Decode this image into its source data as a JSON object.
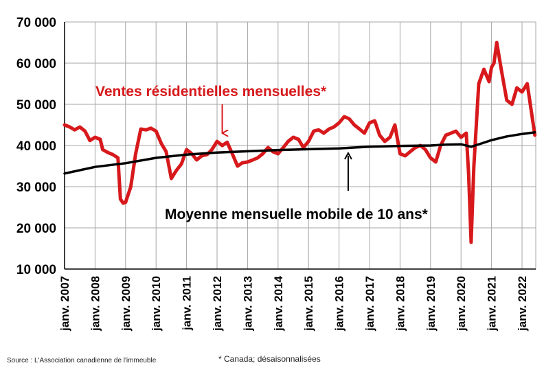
{
  "chart_data": {
    "type": "line",
    "x_tick_labels": [
      "janv. 2007",
      "janv. 2008",
      "janv. 2009",
      "janv. 2010",
      "janv. 2011",
      "janv. 2012",
      "janv. 2013",
      "janv. 2014",
      "janv. 2015",
      "janv. 2016",
      "janv. 2017",
      "janv. 2018",
      "janv. 2019",
      "janv. 2020",
      "janv. 2021",
      "janv. 2022"
    ],
    "y_tick_labels": [
      "10 000",
      "20 000",
      "30 000",
      "40 000",
      "50 000",
      "60 000",
      "70 000"
    ],
    "ylim": [
      10000,
      70000
    ],
    "xlim": [
      2007.0,
      2022.45
    ],
    "grid": true,
    "series": [
      {
        "name": "Ventes résidentielles mensuelles*",
        "color": "#d7191c",
        "points": [
          [
            2007.0,
            45000
          ],
          [
            2007.17,
            44500
          ],
          [
            2007.33,
            43800
          ],
          [
            2007.5,
            44500
          ],
          [
            2007.67,
            43500
          ],
          [
            2007.83,
            41200
          ],
          [
            2008.0,
            42000
          ],
          [
            2008.17,
            41500
          ],
          [
            2008.25,
            39000
          ],
          [
            2008.42,
            38300
          ],
          [
            2008.58,
            37800
          ],
          [
            2008.75,
            37000
          ],
          [
            2008.83,
            27000
          ],
          [
            2008.92,
            26000
          ],
          [
            2009.0,
            26200
          ],
          [
            2009.17,
            30000
          ],
          [
            2009.33,
            38000
          ],
          [
            2009.5,
            44000
          ],
          [
            2009.67,
            43800
          ],
          [
            2009.83,
            44200
          ],
          [
            2010.0,
            43500
          ],
          [
            2010.17,
            40500
          ],
          [
            2010.33,
            38500
          ],
          [
            2010.5,
            32000
          ],
          [
            2010.67,
            34000
          ],
          [
            2010.83,
            35500
          ],
          [
            2011.0,
            39000
          ],
          [
            2011.17,
            38000
          ],
          [
            2011.33,
            36500
          ],
          [
            2011.5,
            37500
          ],
          [
            2011.67,
            37800
          ],
          [
            2011.83,
            39000
          ],
          [
            2012.0,
            41000
          ],
          [
            2012.17,
            40000
          ],
          [
            2012.33,
            40800
          ],
          [
            2012.5,
            38000
          ],
          [
            2012.67,
            35000
          ],
          [
            2012.83,
            35800
          ],
          [
            2013.0,
            36000
          ],
          [
            2013.17,
            36500
          ],
          [
            2013.33,
            37000
          ],
          [
            2013.5,
            38000
          ],
          [
            2013.67,
            39500
          ],
          [
            2013.83,
            38500
          ],
          [
            2014.0,
            38000
          ],
          [
            2014.17,
            39500
          ],
          [
            2014.33,
            41000
          ],
          [
            2014.5,
            42000
          ],
          [
            2014.67,
            41500
          ],
          [
            2014.83,
            39500
          ],
          [
            2015.0,
            41000
          ],
          [
            2015.17,
            43500
          ],
          [
            2015.33,
            43800
          ],
          [
            2015.5,
            43000
          ],
          [
            2015.67,
            44000
          ],
          [
            2015.83,
            44500
          ],
          [
            2016.0,
            45500
          ],
          [
            2016.17,
            47000
          ],
          [
            2016.33,
            46500
          ],
          [
            2016.5,
            45000
          ],
          [
            2016.67,
            44000
          ],
          [
            2016.83,
            43000
          ],
          [
            2017.0,
            45500
          ],
          [
            2017.17,
            46000
          ],
          [
            2017.33,
            42500
          ],
          [
            2017.5,
            41000
          ],
          [
            2017.67,
            42000
          ],
          [
            2017.83,
            45000
          ],
          [
            2018.0,
            38000
          ],
          [
            2018.17,
            37500
          ],
          [
            2018.33,
            38500
          ],
          [
            2018.5,
            39500
          ],
          [
            2018.67,
            40000
          ],
          [
            2018.83,
            39000
          ],
          [
            2019.0,
            37000
          ],
          [
            2019.17,
            36000
          ],
          [
            2019.33,
            40000
          ],
          [
            2019.5,
            42500
          ],
          [
            2019.67,
            43000
          ],
          [
            2019.83,
            43500
          ],
          [
            2020.0,
            42000
          ],
          [
            2020.17,
            43000
          ],
          [
            2020.25,
            33000
          ],
          [
            2020.33,
            16500
          ],
          [
            2020.42,
            35000
          ],
          [
            2020.58,
            55000
          ],
          [
            2020.75,
            58500
          ],
          [
            2020.92,
            55500
          ],
          [
            2021.0,
            59000
          ],
          [
            2021.08,
            60000
          ],
          [
            2021.17,
            65000
          ],
          [
            2021.33,
            58000
          ],
          [
            2021.5,
            51000
          ],
          [
            2021.67,
            50000
          ],
          [
            2021.83,
            54000
          ],
          [
            2022.0,
            53000
          ],
          [
            2022.17,
            55000
          ],
          [
            2022.33,
            47000
          ],
          [
            2022.42,
            42500
          ]
        ]
      },
      {
        "name": "Moyenne mensuelle mobile de 10 ans*",
        "color": "#000000",
        "points": [
          [
            2007.0,
            33200
          ],
          [
            2008.0,
            34800
          ],
          [
            2009.0,
            35700
          ],
          [
            2010.0,
            37000
          ],
          [
            2011.0,
            37800
          ],
          [
            2012.0,
            38300
          ],
          [
            2013.0,
            38600
          ],
          [
            2014.0,
            38900
          ],
          [
            2015.0,
            39100
          ],
          [
            2016.0,
            39300
          ],
          [
            2017.0,
            39700
          ],
          [
            2018.0,
            39900
          ],
          [
            2019.0,
            40000
          ],
          [
            2019.5,
            40200
          ],
          [
            2020.0,
            40300
          ],
          [
            2020.33,
            39700
          ],
          [
            2020.67,
            40500
          ],
          [
            2021.0,
            41300
          ],
          [
            2021.5,
            42200
          ],
          [
            2022.0,
            42800
          ],
          [
            2022.42,
            43200
          ]
        ]
      }
    ],
    "annotations": [
      {
        "id": "red",
        "text": "Ventes résidentielles mensuelles*",
        "arrow_to": [
          2012.17,
          41000
        ]
      },
      {
        "id": "black",
        "text": "Moyenne mensuelle mobile de 10 ans*",
        "arrow_to": [
          2016.3,
          39500
        ]
      }
    ]
  },
  "source_text": "Source : L'Association canadienne de l'immeuble",
  "footnote_text": "* Canada; désaisonnalisées"
}
